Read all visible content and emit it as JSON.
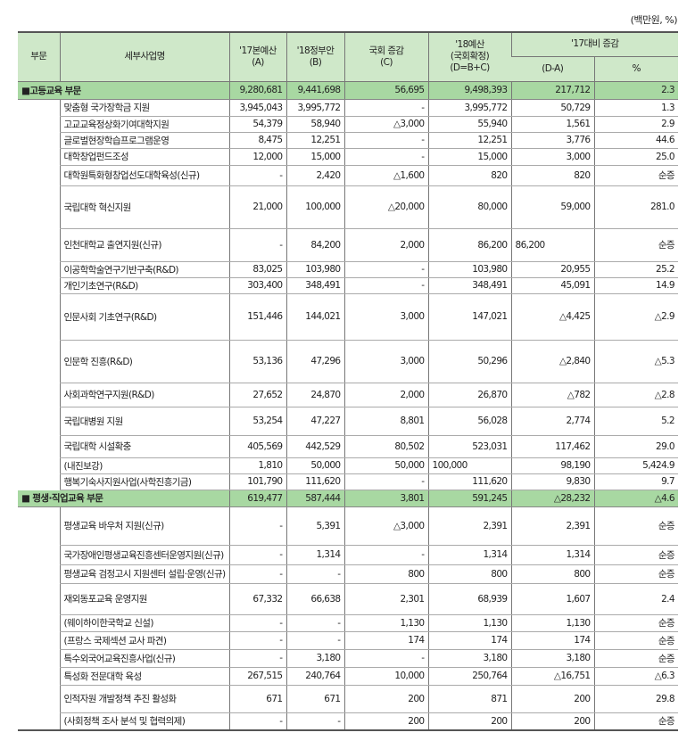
{
  "unit_label": "(백만원, %)",
  "header": {
    "col_sector": "부문",
    "col_program": "세부사업명",
    "col_a": "'17본예산\n(A)",
    "col_b": "'18정부안\n(B)",
    "col_c": "국회 증감\n(C)",
    "col_d": "'18예산\n(국회확정)\n(D=B+C)",
    "col_change": "'17대비 증감",
    "col_change_amount": "(D-A)",
    "col_change_pct": "%"
  },
  "colors": {
    "header_bg": "#cfe8c9",
    "section_bg": "#a8d8a2"
  },
  "rows": [
    {
      "type": "section",
      "name": "■고등교육 부문",
      "a": "9,280,681",
      "b": "9,441,698",
      "c": "56,695",
      "d": "9,498,393",
      "da": "217,712",
      "pct": "2.3"
    },
    {
      "name": "맞춤형 국가장학금 지원",
      "a": "3,945,043",
      "b": "3,995,772",
      "c": "-",
      "d": "3,995,772",
      "da": "50,729",
      "pct": "1.3"
    },
    {
      "name": "고교교육정상화기여대학지원",
      "a": "54,379",
      "b": "58,940",
      "c": "△3,000",
      "d": "55,940",
      "da": "1,561",
      "pct": "2.9"
    },
    {
      "name": "글로벌현장학습프로그램운영",
      "a": "8,475",
      "b": "12,251",
      "c": "-",
      "d": "12,251",
      "da": "3,776",
      "pct": "44.6"
    },
    {
      "name": "대학창업펀드조성",
      "a": "12,000",
      "b": "15,000",
      "c": "-",
      "d": "15,000",
      "da": "3,000",
      "pct": "25.0"
    },
    {
      "name": "대학원특화형창업선도대학육성(신규)",
      "a": "-",
      "b": "2,420",
      "c": "△1,600",
      "d": "820",
      "da": "820",
      "pct": "순증"
    },
    {
      "name": "국립대학 혁신지원",
      "a": "21,000",
      "b": "100,000",
      "c": "△20,000",
      "d": "80,000",
      "da": "59,000",
      "pct": "281.0"
    },
    {
      "name": "인천대학교 출연지원(신규)",
      "a": "-",
      "b": "84,200",
      "c": "2,000",
      "d": "86,200",
      "da": "86,200",
      "pct": "순증",
      "da_left": true
    },
    {
      "name": "이공학학술연구기반구축(R&D)",
      "a": "83,025",
      "b": "103,980",
      "c": "-",
      "d": "103,980",
      "da": "20,955",
      "pct": "25.2"
    },
    {
      "name": "개인기초연구(R&D)",
      "a": "303,400",
      "b": "348,491",
      "c": "-",
      "d": "348,491",
      "da": "45,091",
      "pct": "14.9"
    },
    {
      "name": "인문사회 기초연구(R&D)",
      "a": "151,446",
      "b": "144,021",
      "c": "3,000",
      "d": "147,021",
      "da": "△4,425",
      "pct": "△2.9"
    },
    {
      "name": "인문학 진흥(R&D)",
      "a": "53,136",
      "b": "47,296",
      "c": "3,000",
      "d": "50,296",
      "da": "△2,840",
      "pct": "△5.3"
    },
    {
      "name": "사회과학연구지원(R&D)",
      "a": "27,652",
      "b": "24,870",
      "c": "2,000",
      "d": "26,870",
      "da": "△782",
      "pct": "△2.8"
    },
    {
      "name": "국립대병원 지원",
      "a": "53,254",
      "b": "47,227",
      "c": "8,801",
      "d": "56,028",
      "da": "2,774",
      "pct": "5.2"
    },
    {
      "name": "국립대학 시설확충",
      "a": "405,569",
      "b": "442,529",
      "c": "80,502",
      "d": "523,031",
      "da": "117,462",
      "pct": "29.0"
    },
    {
      "name": "(내진보강)",
      "a": "1,810",
      "b": "50,000",
      "c": "50,000",
      "d": "100,000",
      "da": "98,190",
      "pct": "5,424.9",
      "d_left": true
    },
    {
      "name": "행복기숙사지원사업(사학진흥기금)",
      "a": "101,790",
      "b": "111,620",
      "c": "-",
      "d": "111,620",
      "da": "9,830",
      "pct": "9.7"
    },
    {
      "type": "section",
      "name": "■ 평생·직업교육 부문",
      "a": "619,477",
      "b": "587,444",
      "c": "3,801",
      "d": "591,245",
      "da": "△28,232",
      "pct": "△4.6"
    },
    {
      "name": "평생교육 바우처 지원(신규)",
      "a": "-",
      "b": "5,391",
      "c": "△3,000",
      "d": "2,391",
      "da": "2,391",
      "pct": "순증"
    },
    {
      "name": "국가장애인평생교육진흥센터운영지원(신규)",
      "a": "-",
      "b": "1,314",
      "c": "-",
      "d": "1,314",
      "da": "1,314",
      "pct": "순증"
    },
    {
      "name": "평생교육 검정고시 지원센터 설립·운영(신규)",
      "a": "-",
      "b": "-",
      "c": "800",
      "d": "800",
      "da": "800",
      "pct": "순증"
    },
    {
      "name": "재외동포교육 운영지원",
      "a": "67,332",
      "b": "66,638",
      "c": "2,301",
      "d": "68,939",
      "da": "1,607",
      "pct": "2.4"
    },
    {
      "name": "(웨이하이한국학교 신설)",
      "a": "-",
      "b": "-",
      "c": "1,130",
      "d": "1,130",
      "da": "1,130",
      "pct": "순증"
    },
    {
      "name": "(프랑스 국제섹션 교사 파견)",
      "a": "-",
      "b": "-",
      "c": "174",
      "d": "174",
      "da": "174",
      "pct": "순증"
    },
    {
      "name": "특수외국어교육진흥사업(신규)",
      "a": "-",
      "b": "3,180",
      "c": "-",
      "d": "3,180",
      "da": "3,180",
      "pct": "순증"
    },
    {
      "name": "특성화 전문대학 육성",
      "a": "267,515",
      "b": "240,764",
      "c": "10,000",
      "d": "250,764",
      "da": "△16,751",
      "pct": "△6.3"
    },
    {
      "name": "인적자원 개발정책 추진 활성화",
      "a": "671",
      "b": "671",
      "c": "200",
      "d": "871",
      "da": "200",
      "pct": "29.8"
    },
    {
      "name": "(사회정책 조사 분석 및 협력의제)",
      "a": "-",
      "b": "-",
      "c": "200",
      "d": "200",
      "da": "200",
      "pct": "순증"
    }
  ]
}
